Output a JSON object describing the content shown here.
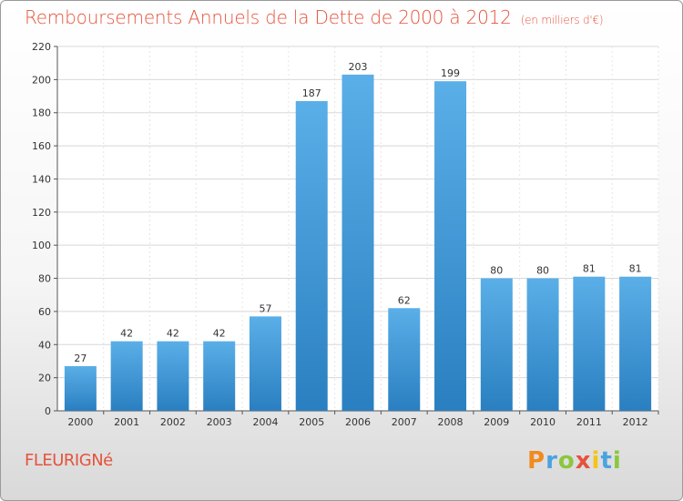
{
  "header": {
    "title": "Remboursements Annuels de la Dette de 2000 à 2012",
    "unit": "(en milliers d'€)"
  },
  "footer": {
    "commune": "FLEURIGNé",
    "logo_letters": [
      "P",
      "r",
      "o",
      "x",
      "i",
      "t",
      "i"
    ],
    "logo_colors": [
      "#f18a1f",
      "#4aa3df",
      "#8cc63f",
      "#e5533c",
      "#f6c21c",
      "#4aa3df",
      "#8cc63f"
    ]
  },
  "colors": {
    "bar_top": "#5aafe8",
    "bar_bottom": "#2a7fc0",
    "title": "#e5533c"
  },
  "chart_data": {
    "type": "bar",
    "title": "Remboursements Annuels de la Dette de 2000 à 2012",
    "xlabel": "",
    "ylabel": "",
    "categories": [
      "2000",
      "2001",
      "2002",
      "2003",
      "2004",
      "2005",
      "2006",
      "2007",
      "2008",
      "2009",
      "2010",
      "2011",
      "2012"
    ],
    "values": [
      27,
      42,
      42,
      42,
      57,
      187,
      203,
      62,
      199,
      80,
      80,
      81,
      81
    ],
    "ylim": [
      0,
      220
    ],
    "yticks": [
      0,
      20,
      40,
      60,
      80,
      100,
      120,
      140,
      160,
      180,
      200,
      220
    ],
    "grid": true,
    "legend": "none"
  }
}
